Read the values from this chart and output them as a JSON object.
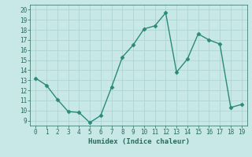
{
  "x": [
    0,
    1,
    2,
    3,
    4,
    5,
    6,
    7,
    8,
    9,
    10,
    11,
    12,
    13,
    14,
    15,
    16,
    17,
    18,
    19
  ],
  "y": [
    13.2,
    12.5,
    11.1,
    9.9,
    9.8,
    8.8,
    9.5,
    12.3,
    15.3,
    16.5,
    18.1,
    18.4,
    19.7,
    13.8,
    15.1,
    17.6,
    17.0,
    16.6,
    10.3,
    10.6
  ],
  "line_color": "#2a8a7a",
  "marker": "D",
  "marker_size": 2.5,
  "linewidth": 1.0,
  "xlabel": "Humidex (Indice chaleur)",
  "xlim": [
    -0.5,
    19.5
  ],
  "ylim": [
    8.5,
    20.5
  ],
  "yticks": [
    9,
    10,
    11,
    12,
    13,
    14,
    15,
    16,
    17,
    18,
    19,
    20
  ],
  "xticks": [
    0,
    1,
    2,
    3,
    4,
    5,
    6,
    7,
    8,
    9,
    10,
    11,
    12,
    13,
    14,
    15,
    16,
    17,
    18,
    19
  ],
  "bg_color": "#c8e8e8",
  "grid_color": "#b0d4d4",
  "font_color": "#2a6a5a",
  "tick_fontsize": 5.5,
  "xlabel_fontsize": 6.5
}
